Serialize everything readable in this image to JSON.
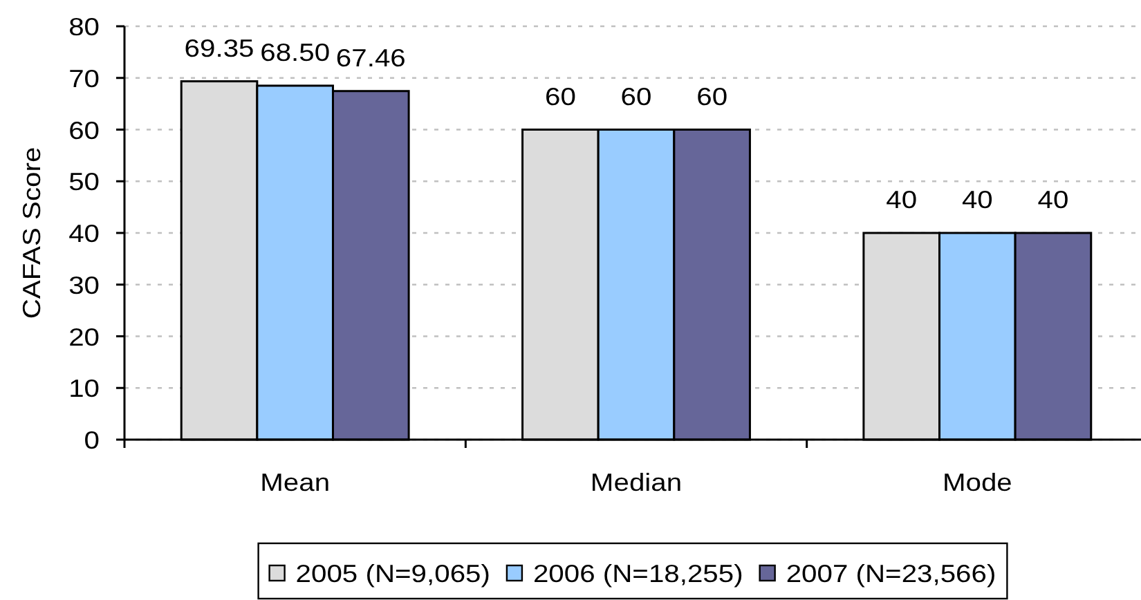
{
  "chart_data": {
    "type": "bar",
    "ylabel": "CAFAS Score",
    "categories": [
      "Mean",
      "Median",
      "Mode"
    ],
    "series": [
      {
        "name": "2005 (N=9,065)",
        "color": "#dcdcdc",
        "values": [
          69.35,
          60,
          40
        ],
        "value_labels": [
          "69.35",
          "60",
          "40"
        ]
      },
      {
        "name": "2006 (N=18,255)",
        "color": "#99ccff",
        "values": [
          68.5,
          60,
          40
        ],
        "value_labels": [
          "68.50",
          "60",
          "40"
        ]
      },
      {
        "name": "2007 (N=23,566)",
        "color": "#666699",
        "values": [
          67.46,
          60,
          40
        ],
        "value_labels": [
          "67.46",
          "60",
          "40"
        ]
      }
    ],
    "ylim": [
      0,
      80
    ],
    "yticks": [
      0,
      10,
      20,
      30,
      40,
      50,
      60,
      70,
      80
    ],
    "grid": "y",
    "legend": "bottom"
  }
}
